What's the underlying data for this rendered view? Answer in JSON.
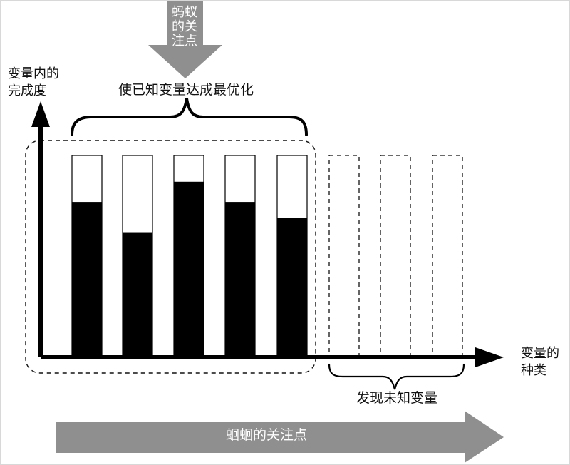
{
  "diagram": {
    "top_arrow_label": "蚂蚁\n的关\n注点",
    "optimize_label": "使已知变量达成最优化",
    "y_axis_label": "变量内的\n完成度",
    "x_axis_label": "变量的\n种类",
    "discover_label": "发现未知变量",
    "bottom_arrow_label": "蛔蛔的关注点",
    "known_variable_completion": [
      0.77,
      0.62,
      0.87,
      0.77,
      0.69
    ],
    "unknown_variable_count": 3,
    "colors": {
      "axis": "#000000",
      "filled_bar": "#000000",
      "empty_bar": "#ffffff",
      "arrow": "#8f8f8f",
      "dashed_outline": "#111111"
    }
  }
}
